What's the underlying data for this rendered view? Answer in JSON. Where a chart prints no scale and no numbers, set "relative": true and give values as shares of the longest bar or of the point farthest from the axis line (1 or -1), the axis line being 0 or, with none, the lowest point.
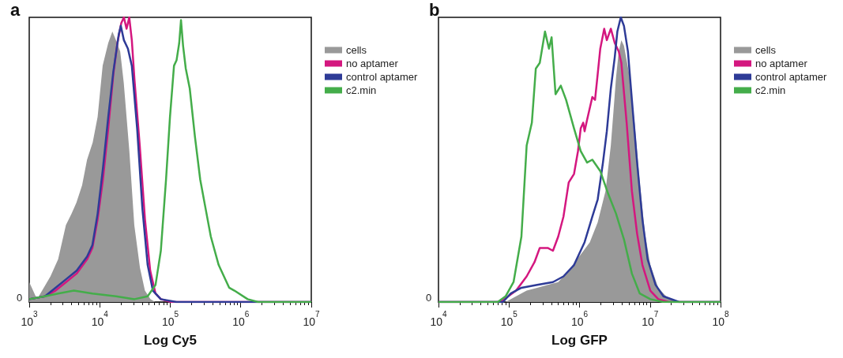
{
  "chart_data": [
    {
      "type": "line",
      "title": "a",
      "xlabel": "Log Cy5",
      "log": "x",
      "relative": true,
      "marker": "none",
      "legend": "top right",
      "xlim": [
        1000,
        10000000
      ],
      "xticks": [
        {
          "value": 1000,
          "label": "10$^{3}$"
        },
        {
          "value": 10000,
          "label": "10$^{4}$"
        },
        {
          "value": 100000,
          "label": "10$^{5}$"
        },
        {
          "value": 1000000,
          "label": "10$^{6}$"
        },
        {
          "value": 10000000,
          "label": "10$^{7}$"
        }
      ],
      "annotations": [
        "0"
      ],
      "series": [
        {
          "name": "cells",
          "type": "area",
          "color": "#999999",
          "x": [
            1000,
            1290,
            2000,
            2570,
            3310,
            3980,
            4680,
            5620,
            6610,
            7940,
            9330,
            11000,
            13200,
            15100,
            17000,
            19500,
            21900,
            26300,
            30900,
            37200,
            43700,
            52500,
            61700,
            10000000
          ],
          "values": [
            0.07,
            0.01,
            0.09,
            0.15,
            0.27,
            0.31,
            0.35,
            0.41,
            0.5,
            0.56,
            0.65,
            0.83,
            0.91,
            0.95,
            0.92,
            0.88,
            0.77,
            0.53,
            0.27,
            0.12,
            0.04,
            0.01,
            0,
            0
          ]
        },
        {
          "name": "no aptamer",
          "color": "#d4177f",
          "x": [
            1000,
            1670,
            2360,
            3330,
            4700,
            6620,
            7870,
            9330,
            11100,
            13200,
            15600,
            17800,
            20200,
            22000,
            24000,
            26200,
            28500,
            31100,
            36900,
            43800,
            52000,
            61800,
            73500,
            103000,
            10000000
          ],
          "values": [
            0.01,
            0.02,
            0.04,
            0.07,
            0.1,
            0.15,
            0.19,
            0.29,
            0.43,
            0.61,
            0.8,
            0.91,
            0.98,
            1,
            0.96,
            1,
            0.92,
            0.78,
            0.55,
            0.29,
            0.11,
            0.03,
            0.01,
            0,
            0
          ]
        },
        {
          "name": "control aptamer",
          "color": "#2e3b97",
          "x": [
            1000,
            1670,
            2360,
            3330,
            4700,
            6620,
            7870,
            9330,
            11100,
            13200,
            15600,
            18600,
            19900,
            22000,
            25100,
            28500,
            33900,
            40200,
            47800,
            56700,
            73500,
            123000,
            345000,
            10000000
          ],
          "values": [
            0.01,
            0.02,
            0.05,
            0.08,
            0.11,
            0.16,
            0.2,
            0.31,
            0.47,
            0.65,
            0.81,
            0.94,
            0.97,
            0.92,
            0.89,
            0.83,
            0.61,
            0.33,
            0.13,
            0.04,
            0.01,
            0,
            0,
            0
          ]
        },
        {
          "name": "c2.min",
          "color": "#44ad4a",
          "x": [
            1000,
            1670,
            2570,
            4300,
            7870,
            17000,
            31100,
            47800,
            61800,
            73500,
            87100,
            99100,
            113000,
            123000,
            134000,
            142000,
            152000,
            166000,
            189000,
            224000,
            266000,
            316000,
            376000,
            486000,
            686000,
            813000,
            1250000,
            1760000,
            10000000
          ],
          "values": [
            0.01,
            0.02,
            0.03,
            0.04,
            0.03,
            0.02,
            0.01,
            0.02,
            0.06,
            0.18,
            0.43,
            0.65,
            0.83,
            0.85,
            0.91,
            0.99,
            0.9,
            0.82,
            0.75,
            0.58,
            0.43,
            0.33,
            0.23,
            0.13,
            0.05,
            0.04,
            0.01,
            0,
            0
          ]
        }
      ]
    },
    {
      "type": "line",
      "title": "b",
      "xlabel": "Log GFP",
      "log": "x",
      "relative": true,
      "marker": "none",
      "legend": "top right",
      "xlim": [
        10000,
        100000000
      ],
      "xticks": [
        {
          "value": 10000,
          "label": "10$^{4}$"
        },
        {
          "value": 100000,
          "label": "10$^{5}$"
        },
        {
          "value": 1000000,
          "label": "10$^{6}$"
        },
        {
          "value": 10000000,
          "label": "10$^{7}$"
        },
        {
          "value": 100000000,
          "label": "10$^{8}$"
        }
      ],
      "annotations": [
        "0"
      ],
      "series": [
        {
          "name": "cells",
          "type": "area",
          "color": "#999999",
          "x": [
            10000,
            89400,
            126000,
            178000,
            251000,
            354000,
            499000,
            703000,
            991000,
            1400000,
            1810000,
            2340000,
            2780000,
            3030000,
            3300000,
            3600000,
            3920000,
            4270000,
            5070000,
            6030000,
            7150000,
            8490000,
            10100000,
            13100000,
            16900000,
            23800000,
            100000000
          ],
          "values": [
            0,
            0,
            0.02,
            0.04,
            0.05,
            0.06,
            0.07,
            0.11,
            0.16,
            0.21,
            0.28,
            0.39,
            0.55,
            0.67,
            0.79,
            0.88,
            0.92,
            0.9,
            0.8,
            0.63,
            0.42,
            0.24,
            0.13,
            0.05,
            0.02,
            0,
            0
          ]
        },
        {
          "name": "no aptamer",
          "color": "#d4177f",
          "x": [
            10000,
            75300,
            97500,
            126000,
            178000,
            230000,
            273000,
            354000,
            420000,
            499000,
            592000,
            703000,
            836000,
            951000,
            1040000,
            1130000,
            1180000,
            1280000,
            1520000,
            1660000,
            1810000,
            1970000,
            2240000,
            2440000,
            2780000,
            3160000,
            3600000,
            3920000,
            4660000,
            5530000,
            6560000,
            7800000,
            10100000,
            13100000,
            18400000,
            100000000
          ],
          "values": [
            0,
            0,
            0.02,
            0.04,
            0.09,
            0.14,
            0.19,
            0.19,
            0.18,
            0.23,
            0.3,
            0.42,
            0.45,
            0.53,
            0.61,
            0.63,
            0.6,
            0.64,
            0.72,
            0.71,
            0.8,
            0.89,
            0.96,
            0.92,
            0.96,
            0.91,
            0.88,
            0.84,
            0.63,
            0.39,
            0.24,
            0.13,
            0.04,
            0.01,
            0,
            0
          ]
        },
        {
          "name": "control aptamer",
          "color": "#2e3b97",
          "x": [
            10000,
            82000,
            106000,
            150000,
            251000,
            420000,
            592000,
            836000,
            1180000,
            1520000,
            1810000,
            2150000,
            2440000,
            2780000,
            3160000,
            3440000,
            3850000,
            4270000,
            4860000,
            5530000,
            6560000,
            7800000,
            9250000,
            12000000,
            15500000,
            25900000,
            100000000
          ],
          "values": [
            0,
            0,
            0.03,
            0.05,
            0.06,
            0.07,
            0.09,
            0.13,
            0.21,
            0.3,
            0.36,
            0.49,
            0.6,
            0.75,
            0.86,
            0.95,
            1,
            0.97,
            0.88,
            0.71,
            0.49,
            0.29,
            0.15,
            0.06,
            0.02,
            0,
            0
          ]
        },
        {
          "name": "c2.min",
          "color": "#44ad4a",
          "x": [
            10000,
            69200,
            89400,
            116000,
            150000,
            178000,
            211000,
            240000,
            273000,
            324000,
            369000,
            402000,
            457000,
            543000,
            645000,
            836000,
            1040000,
            1280000,
            1520000,
            1970000,
            2550000,
            3300000,
            4270000,
            5530000,
            7150000,
            10100000,
            15500000,
            100000000
          ],
          "values": [
            0,
            0,
            0.02,
            0.07,
            0.23,
            0.55,
            0.63,
            0.82,
            0.84,
            0.95,
            0.89,
            0.93,
            0.73,
            0.76,
            0.71,
            0.61,
            0.53,
            0.49,
            0.5,
            0.46,
            0.38,
            0.31,
            0.22,
            0.1,
            0.03,
            0.01,
            0,
            0
          ]
        }
      ]
    }
  ]
}
